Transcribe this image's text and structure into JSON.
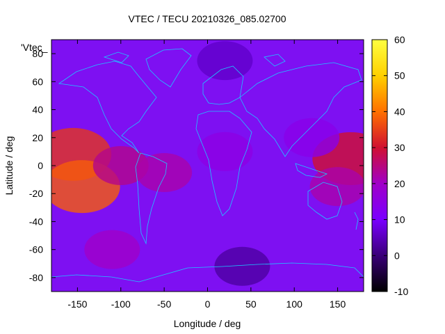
{
  "chart_data": {
    "type": "heatmap",
    "title": "VTEC / TECU 20210326_085.02700",
    "xlabel": "Longitude / deg",
    "ylabel": "Latitude / deg",
    "key_label": "'Vtec_",
    "xlim": [
      -180,
      180
    ],
    "ylim": [
      -90,
      90
    ],
    "x_ticks": [
      -150,
      -100,
      -50,
      0,
      50,
      100,
      150
    ],
    "y_ticks": [
      -80,
      -60,
      -40,
      -20,
      0,
      20,
      40,
      60,
      80
    ],
    "colorbar": {
      "range": [
        -10,
        60
      ],
      "ticks": [
        -10,
        0,
        10,
        20,
        30,
        40,
        50,
        60
      ],
      "palette": [
        "#000000",
        "#3a0078",
        "#7a00ff",
        "#a000c8",
        "#d01030",
        "#ff7000",
        "#ffd000",
        "#ffff40"
      ]
    },
    "coastline_color": "#1ec8ff",
    "features": [
      {
        "lon": -155,
        "lat": 8,
        "value": 34
      },
      {
        "lon": -145,
        "lat": -15,
        "value": 38
      },
      {
        "lon": -100,
        "lat": 0,
        "value": 24
      },
      {
        "lon": -50,
        "lat": -5,
        "value": 22
      },
      {
        "lon": 165,
        "lat": 5,
        "value": 30
      },
      {
        "lon": 150,
        "lat": -15,
        "value": 22
      },
      {
        "lon": -110,
        "lat": -60,
        "value": 20
      },
      {
        "lon": 20,
        "lat": 10,
        "value": 15
      },
      {
        "lon": 120,
        "lat": 20,
        "value": 14
      },
      {
        "lon": 40,
        "lat": -72,
        "value": 3
      },
      {
        "lon": 20,
        "lat": 75,
        "value": 6
      }
    ]
  }
}
